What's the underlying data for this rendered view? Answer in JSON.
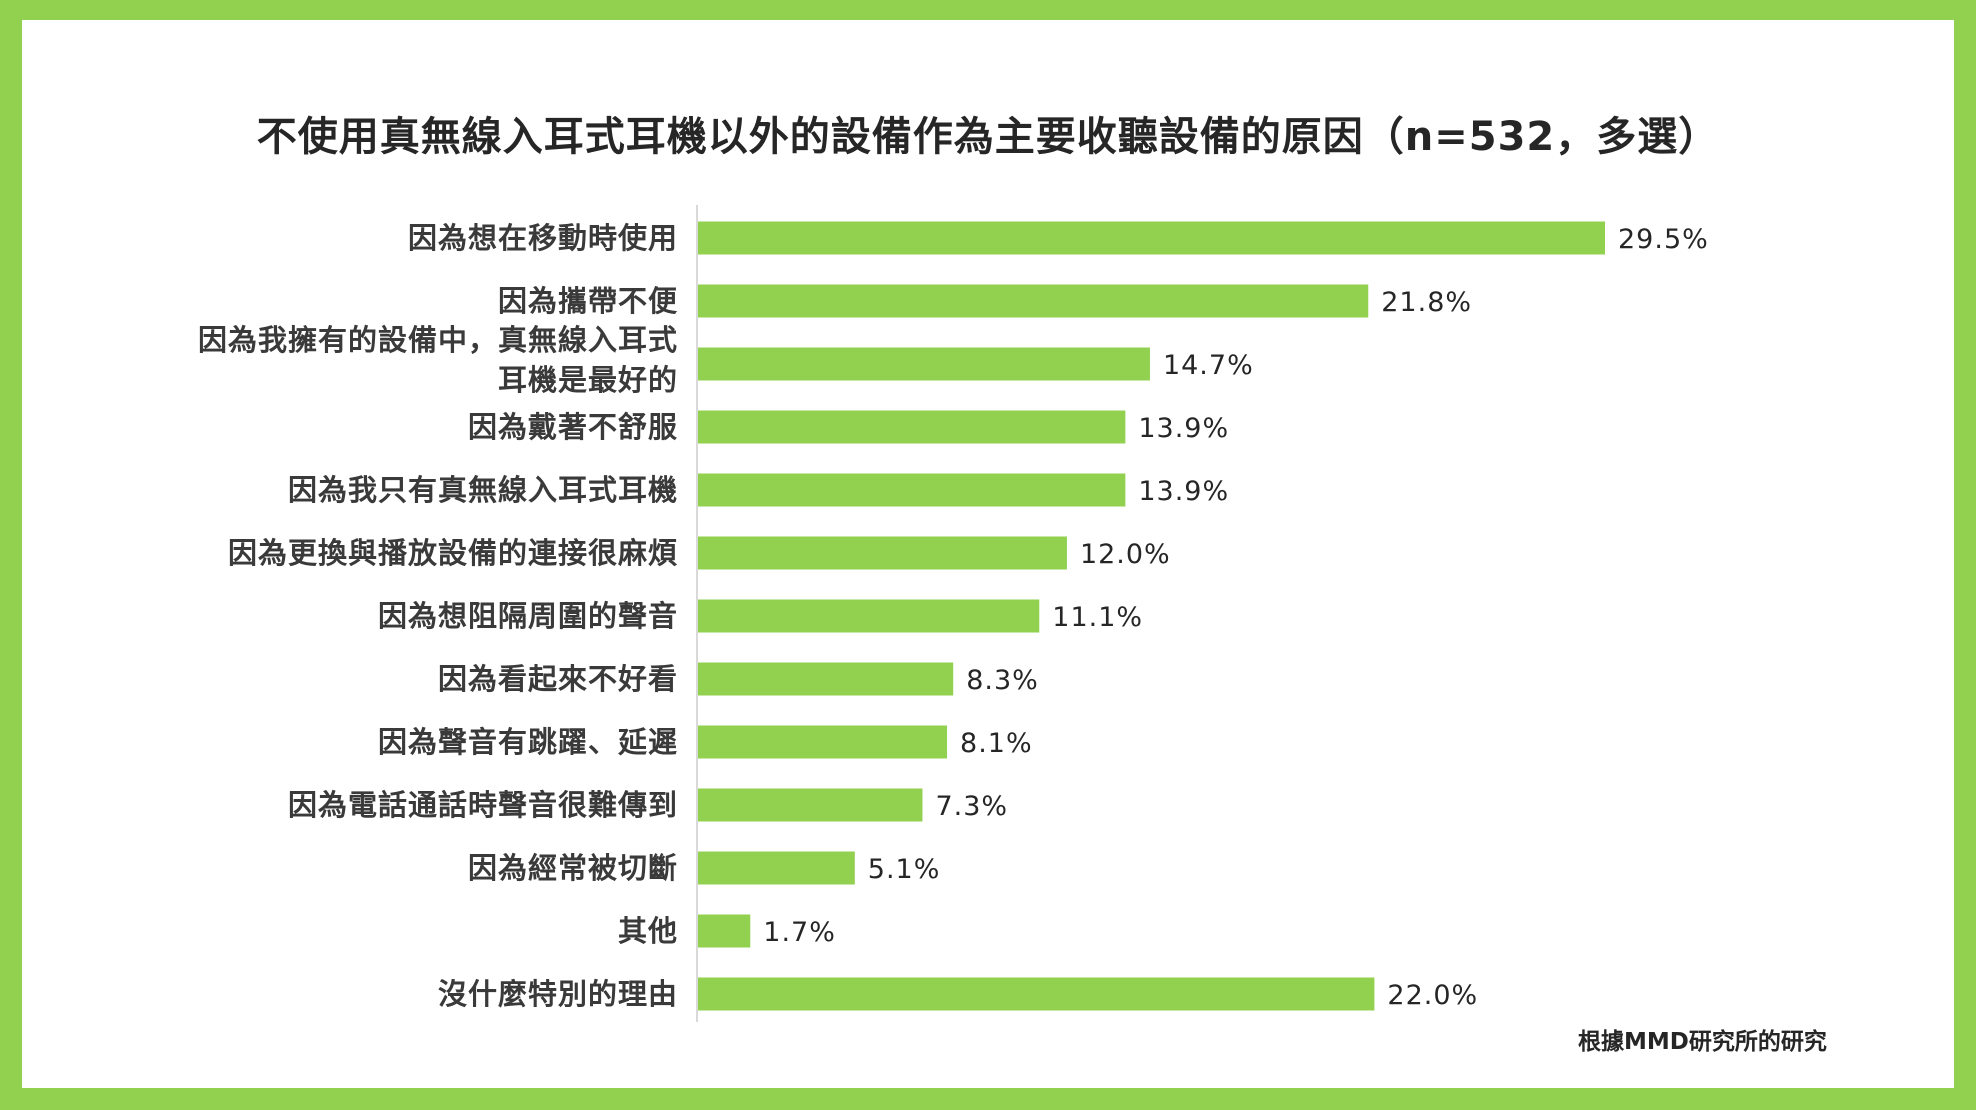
{
  "title": "不使用真無線入耳式耳機以外的設備作為主要收聽設備的原因（n=532，多選）",
  "source": "根據MMD研究所的研究",
  "colors": {
    "frame": "#92d050",
    "bar": "#92d050",
    "text": "#262626"
  },
  "chart_data": {
    "type": "bar",
    "orientation": "horizontal",
    "value_suffix": "%",
    "categories": [
      [
        "因為想在移動時使用"
      ],
      [
        "因為攜帶不便"
      ],
      [
        "因為我擁有的設備中，真無線入耳式",
        "耳機是最好的"
      ],
      [
        "因為戴著不舒服"
      ],
      [
        "因為我只有真無線入耳式耳機"
      ],
      [
        "因為更換與播放設備的連接很麻煩"
      ],
      [
        "因為想阻隔周圍的聲音"
      ],
      [
        "因為看起來不好看"
      ],
      [
        "因為聲音有跳躍、延遲"
      ],
      [
        "因為電話通話時聲音很難傳到"
      ],
      [
        "因為經常被切斷"
      ],
      [
        "其他"
      ],
      [
        "沒什麼特別的理由"
      ]
    ],
    "values": [
      29.5,
      21.8,
      14.7,
      13.9,
      13.9,
      12.0,
      11.1,
      8.3,
      8.1,
      7.3,
      5.1,
      1.7,
      22.0
    ],
    "value_labels": [
      "29.5%",
      "21.8%",
      "14.7%",
      "13.9%",
      "13.9%",
      "12.0%",
      "11.1%",
      "8.3%",
      "8.1%",
      "7.3%",
      "5.1%",
      "1.7%",
      "22.0%"
    ],
    "xlim": [
      0,
      30
    ],
    "grid": false,
    "legend": "none"
  }
}
